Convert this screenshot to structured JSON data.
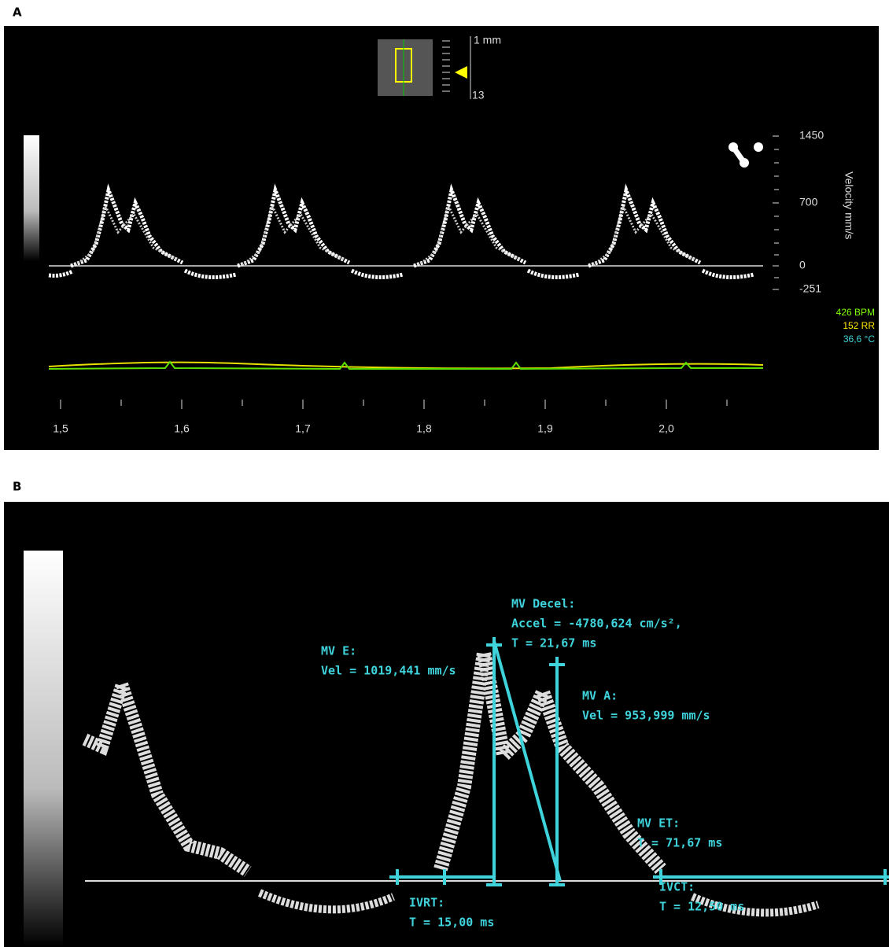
{
  "panel_a": {
    "label": "A",
    "scale": {
      "top": "1 mm",
      "bottom": "13"
    },
    "velocity_axis": {
      "title": "Velocity mm/s",
      "ticks": [
        "1450",
        "700",
        "0",
        "-251"
      ]
    },
    "vitals": {
      "heart_rate": "426 BPM",
      "respiration": "152 RR",
      "temperature": "36,6 °C"
    },
    "time_ticks": [
      "1,5",
      "1,6",
      "1,7",
      "1,8",
      "1,9",
      "2,0"
    ]
  },
  "panel_b": {
    "label": "B",
    "measurements": {
      "mv_decel": {
        "title": "MV Decel:",
        "line1": "Accel = -4780,624 cm/s²,",
        "line2": "T = 21,67 ms"
      },
      "mv_e": {
        "title": "MV E:",
        "line1": "Vel = 1019,441 mm/s"
      },
      "mv_a": {
        "title": "MV A:",
        "line1": "Vel = 953,999 mm/s"
      },
      "mv_et": {
        "title": "MV ET:",
        "line1": "T = 71,67 ms"
      },
      "ivrt": {
        "title": "IVRT:",
        "line1": "T = 15,00 ms"
      },
      "ivct": {
        "title": "IVCT:",
        "line1": "T = 12,50 ms"
      }
    }
  }
}
